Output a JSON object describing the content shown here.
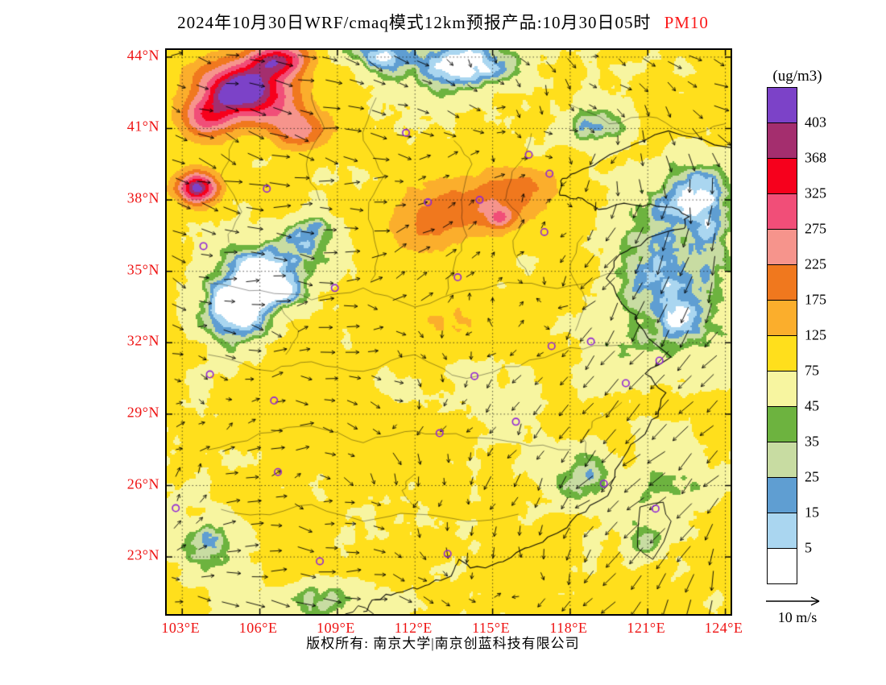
{
  "title": {
    "main": "2024年10月30日WRF/cmaq模式12km预报产品:10月30日05时",
    "pollutant": "PM10"
  },
  "colors": {
    "pollutant_accent": "#fb1a1a",
    "axis_labels": "#ee1111",
    "frame": "#000000",
    "station_marker": "#9025d8"
  },
  "legend": {
    "units": "(ug/m3)",
    "levels": [
      "403",
      "368",
      "325",
      "275",
      "225",
      "175",
      "125",
      "75",
      "45",
      "35",
      "25",
      "15",
      "5"
    ],
    "colors_top_to_bottom": [
      "#7c42c8",
      "#a42e6e",
      "#f6001c",
      "#f14e78",
      "#f6948c",
      "#f0781e",
      "#fbae2c",
      "#ffdf1c",
      "#f7f5a0",
      "#6db33f",
      "#c8dca2",
      "#5f9ed2",
      "#aad6f0",
      "#ffffff"
    ]
  },
  "axes": {
    "lat_labels": [
      "44°N",
      "41°N",
      "38°N",
      "35°N",
      "32°N",
      "29°N",
      "26°N",
      "23°N"
    ],
    "lat_values": [
      44,
      41,
      38,
      35,
      32,
      29,
      26,
      23
    ],
    "lon_labels": [
      "103°E",
      "106°E",
      "109°E",
      "112°E",
      "115°E",
      "118°E",
      "121°E",
      "124°E"
    ],
    "lon_values": [
      103,
      106,
      109,
      112,
      115,
      118,
      121,
      124
    ]
  },
  "wind_scale": {
    "label": "10 m/s"
  },
  "footer": {
    "copyright": "版权所有: 南京大学|南京创蓝科技有限公司"
  },
  "map": {
    "lon_range": [
      102.4,
      124.2
    ],
    "lat_range": [
      20.6,
      44.3
    ],
    "grid_step_deg": 3,
    "base_value": 85,
    "levels": [
      5,
      15,
      25,
      35,
      45,
      75,
      125,
      175,
      225,
      275,
      325,
      368,
      403
    ],
    "hotspots": [
      [
        105.3,
        42.8,
        1.6,
        1.1,
        330
      ],
      [
        104.0,
        41.5,
        1.0,
        0.9,
        210
      ],
      [
        106.8,
        43.9,
        1.1,
        0.7,
        260
      ],
      [
        103.6,
        38.5,
        0.75,
        0.65,
        340
      ],
      [
        107.6,
        40.9,
        1.0,
        0.8,
        150
      ],
      [
        106.2,
        41.9,
        1.5,
        1.0,
        120
      ],
      [
        114.3,
        37.7,
        2.0,
        1.0,
        120
      ],
      [
        112.3,
        37.0,
        1.6,
        1.2,
        70
      ],
      [
        116.0,
        38.6,
        1.5,
        0.9,
        70
      ],
      [
        115.3,
        37.2,
        0.5,
        0.4,
        130
      ],
      [
        106.3,
        34.8,
        2.0,
        1.6,
        -90
      ],
      [
        104.8,
        33.0,
        1.4,
        1.4,
        -70
      ],
      [
        108.0,
        36.6,
        1.2,
        1.0,
        -55
      ],
      [
        121.8,
        34.0,
        2.4,
        3.0,
        -85
      ],
      [
        123.0,
        38.0,
        1.8,
        1.8,
        -70
      ],
      [
        119.0,
        41.0,
        1.6,
        1.0,
        -55
      ],
      [
        113.8,
        43.6,
        2.6,
        1.3,
        -85
      ],
      [
        110.5,
        44.2,
        1.5,
        0.8,
        -60
      ],
      [
        104.0,
        23.5,
        1.4,
        1.8,
        -55
      ],
      [
        118.2,
        26.3,
        1.6,
        1.6,
        -50
      ],
      [
        120.8,
        23.6,
        0.9,
        1.2,
        -45
      ],
      [
        115.2,
        29.4,
        1.6,
        0.8,
        -40
      ],
      [
        113.8,
        30.8,
        1.5,
        0.6,
        -30
      ],
      [
        111.3,
        30.1,
        1.1,
        0.7,
        -35
      ],
      [
        122.0,
        26.0,
        2.0,
        2.0,
        -35
      ],
      [
        109.0,
        21.2,
        2.5,
        1.0,
        -50
      ],
      [
        112.5,
        33.0,
        2.5,
        1.5,
        30
      ],
      [
        110.0,
        28.8,
        2.5,
        2.0,
        22
      ]
    ],
    "stations": [
      [
        116.4,
        39.9
      ],
      [
        117.2,
        39.1
      ],
      [
        114.5,
        38.0
      ],
      [
        112.5,
        37.9
      ],
      [
        108.9,
        34.3
      ],
      [
        113.65,
        34.75
      ],
      [
        117.0,
        36.65
      ],
      [
        118.8,
        32.05
      ],
      [
        121.45,
        31.25
      ],
      [
        120.15,
        30.3
      ],
      [
        117.28,
        31.86
      ],
      [
        115.9,
        28.68
      ],
      [
        114.3,
        30.6
      ],
      [
        112.95,
        28.2
      ],
      [
        106.55,
        29.57
      ],
      [
        104.07,
        30.67
      ],
      [
        106.7,
        26.57
      ],
      [
        102.75,
        25.05
      ],
      [
        108.32,
        22.82
      ],
      [
        113.26,
        23.13
      ],
      [
        119.3,
        26.08
      ],
      [
        103.82,
        36.06
      ],
      [
        111.65,
        40.82
      ],
      [
        106.27,
        38.47
      ],
      [
        121.3,
        25.03
      ]
    ]
  }
}
